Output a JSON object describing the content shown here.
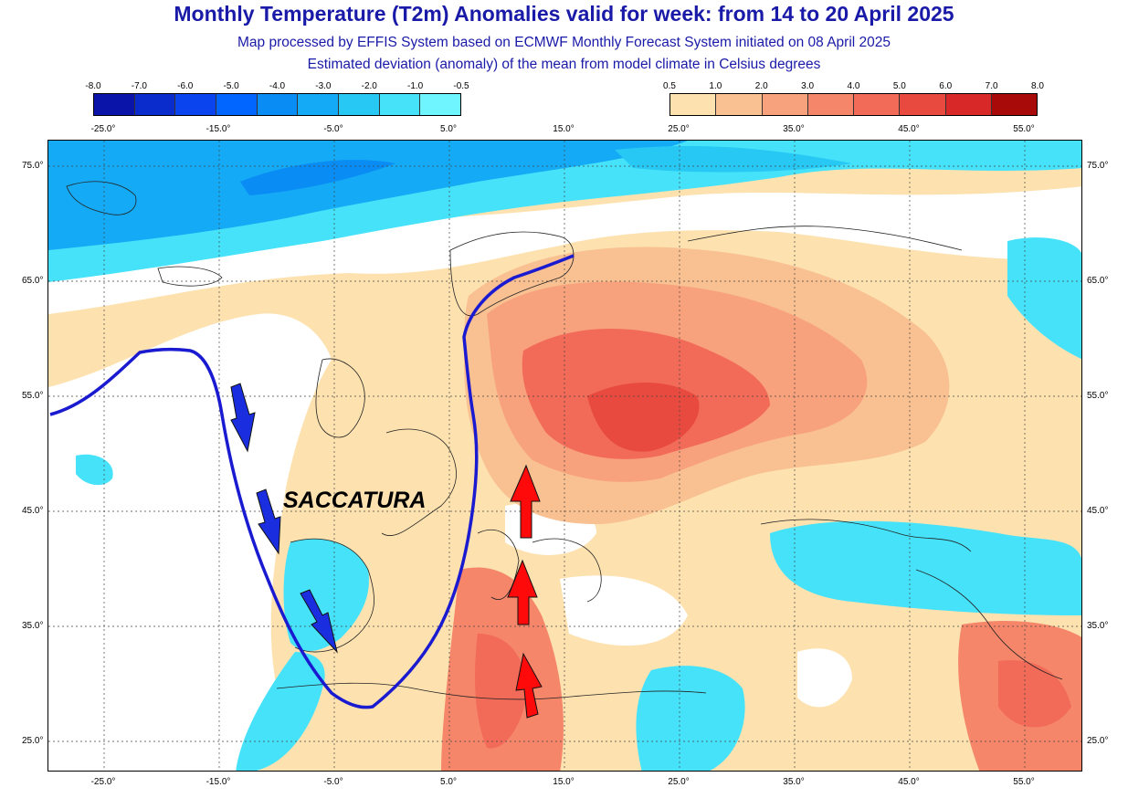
{
  "title": "Monthly Temperature (T2m) Anomalies valid for week: from 14 to 20 April 2025",
  "subtitle_1": "Map processed by EFFIS System based on ECMWF Monthly Forecast System initiated on 08 April 2025",
  "subtitle_2": "Estimated deviation (anomaly) of the mean from model climate in Celsius degrees",
  "legend_cold": {
    "labels": [
      "-8.0",
      "-7.0",
      "-6.0",
      "-5.0",
      "-4.0",
      "-3.0",
      "-2.0",
      "-1.0",
      "-0.5"
    ],
    "colors": [
      "#0a14a8",
      "#0a2ccc",
      "#0a44ee",
      "#0066ff",
      "#0a8cf5",
      "#14aaf5",
      "#28c8f5",
      "#46e2fa",
      "#6ef5ff"
    ]
  },
  "legend_warm": {
    "labels": [
      "0.5",
      "1.0",
      "2.0",
      "3.0",
      "4.0",
      "5.0",
      "6.0",
      "7.0",
      "8.0"
    ],
    "colors": [
      "#fde2b0",
      "#f9c092",
      "#f7a27c",
      "#f5866a",
      "#f26a58",
      "#e84a40",
      "#d82828",
      "#a80a0a"
    ]
  },
  "longitude_labels": [
    "-25.0°",
    "-15.0°",
    "-5.0°",
    "5.0°",
    "15.0°",
    "25.0°",
    "35.0°",
    "45.0°",
    "55.0°"
  ],
  "latitude_labels": [
    "75.0°",
    "65.0°",
    "55.0°",
    "45.0°",
    "35.0°",
    "25.0°"
  ],
  "annotation": "SACCATURA",
  "colors": {
    "title": "#1a1aa8",
    "trough_line": "#1a1ad0",
    "cold_arrow": "#1a2ee0",
    "warm_arrow": "#ff0a0a"
  }
}
